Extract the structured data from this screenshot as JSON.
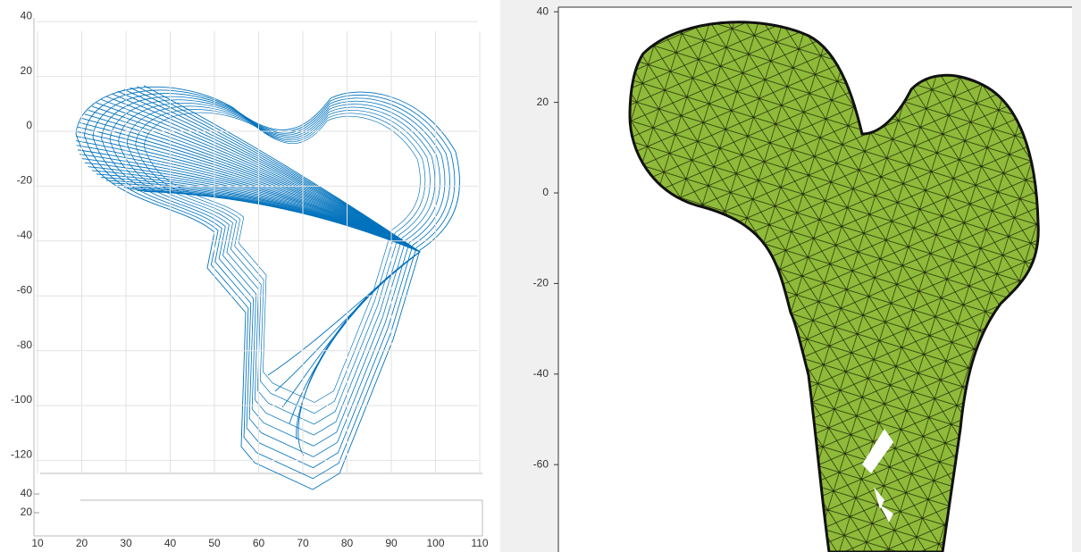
{
  "left_plot": {
    "yticks": [
      40,
      20,
      0,
      -20,
      -40,
      -60,
      -80,
      -100,
      -120
    ],
    "xticks": [
      10,
      20,
      30,
      40,
      50,
      60,
      70,
      80,
      90,
      100,
      110
    ],
    "zticks": [
      40,
      20
    ]
  },
  "right_plot": {
    "yticks": [
      40,
      20,
      0,
      -20,
      -40,
      -60
    ]
  }
}
